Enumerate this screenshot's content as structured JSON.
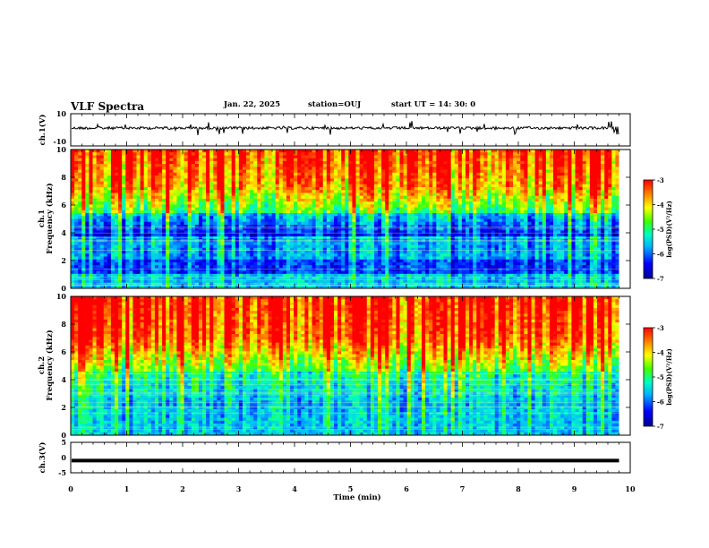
{
  "header": {
    "title": "VLF Spectra",
    "date": "Jan. 22, 2025",
    "station": "station=OUJ",
    "start_ut": "start  UT =   14: 30: 0"
  },
  "chart_data": [
    {
      "type": "line",
      "panel": "ch1-waveform",
      "ylabel": "ch.1(V)",
      "ylim": [
        -10,
        10
      ],
      "ytick_labels": [
        "10",
        "-10"
      ],
      "xlim": [
        0,
        10
      ],
      "baseline_value": 0,
      "series": [
        {
          "values_description_free": true,
          "x": [
            0,
            9.8
          ],
          "y": [
            0,
            0
          ]
        }
      ]
    },
    {
      "type": "heatmap",
      "panel": "ch1-spectrogram",
      "ylabel": "Frequency (kHz)",
      "channel_label": "ch.1",
      "ylim": [
        0,
        10
      ],
      "yticks": [
        0,
        2,
        4,
        6,
        8,
        10
      ],
      "xlim": [
        0,
        10
      ],
      "data_x_end": 9.8,
      "colorbar": {
        "label": "log(PSD)(V²/Hz)",
        "range": [
          -7,
          -3
        ],
        "ticks": [
          -3,
          -4,
          -5,
          -6,
          -7
        ]
      }
    },
    {
      "type": "heatmap",
      "panel": "ch2-spectrogram",
      "ylabel": "Frequency (kHz)",
      "channel_label": "ch.2",
      "ylim": [
        0,
        10
      ],
      "yticks": [
        0,
        2,
        4,
        6,
        8,
        10
      ],
      "xlim": [
        0,
        10
      ],
      "data_x_end": 9.8,
      "colorbar": {
        "label": "log(PSD)(V²/Hz)",
        "range": [
          -7,
          -3
        ],
        "ticks": [
          -3,
          -4,
          -5,
          -6,
          -7
        ]
      }
    },
    {
      "type": "line",
      "panel": "ch3-waveform",
      "ylabel": "ch.3(V)",
      "ylim": [
        -5,
        5
      ],
      "yticks": [
        5,
        0,
        -5
      ],
      "xlim": [
        0,
        10
      ],
      "xlabel": "Time  (min)",
      "xticks": [
        0,
        1,
        2,
        3,
        4,
        5,
        6,
        7,
        8,
        9,
        10
      ],
      "series": [
        {
          "x": [
            0,
            9.8
          ],
          "y": [
            -1,
            -1
          ]
        }
      ]
    }
  ],
  "labels": {
    "ch1_top": "10",
    "ch1_bottom": "-10",
    "ch1_name": "ch.1(V)",
    "spec1_channel": "ch.1",
    "spec2_channel": "ch.2",
    "freq_label": "Frequency (kHz)",
    "ch3_name": "ch.3(V)",
    "time_label": "Time  (min)",
    "cbar_label": "log(PSD)(V²/Hz)",
    "cbar_ticks": [
      "-3",
      "-4",
      "-5",
      "-6",
      "-7"
    ],
    "spec_yticks": [
      "0",
      "2",
      "4",
      "6",
      "8",
      "10"
    ],
    "ch3_yticks": [
      "5",
      "0",
      "-5"
    ],
    "xticks": [
      "0",
      "1",
      "2",
      "3",
      "4",
      "5",
      "6",
      "7",
      "8",
      "9",
      "10"
    ]
  }
}
